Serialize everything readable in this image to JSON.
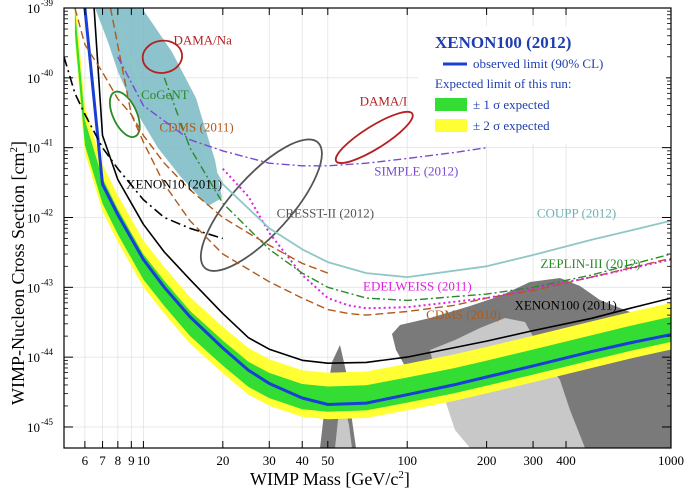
{
  "chart_data": {
    "type": "line",
    "xlabel_main": "WIMP Mass [GeV/c",
    "xlabel_sup": "2",
    "xlabel_end": "]",
    "ylabel_main": "WIMP-Nucleon Cross Section [cm",
    "ylabel_sup": "2",
    "ylabel_end": "]",
    "x_scale": "log",
    "y_scale": "log",
    "xlim": [
      5,
      1000
    ],
    "ylim": [
      5e-46,
      1e-39
    ],
    "x_ticks": [
      {
        "v": 6,
        "t": "6"
      },
      {
        "v": 7,
        "t": "7"
      },
      {
        "v": 8,
        "t": "8"
      },
      {
        "v": 9,
        "t": "9"
      },
      {
        "v": 10,
        "t": "10"
      },
      {
        "v": 20,
        "t": "20"
      },
      {
        "v": 30,
        "t": "30"
      },
      {
        "v": 40,
        "t": "40"
      },
      {
        "v": 50,
        "t": "50"
      },
      {
        "v": 100,
        "t": "100"
      },
      {
        "v": 200,
        "t": "200"
      },
      {
        "v": 300,
        "t": "300"
      },
      {
        "v": 400,
        "t": "400"
      },
      {
        "v": 1000,
        "t": "1000"
      }
    ],
    "y_ticks": [
      {
        "e": -39,
        "t": "10",
        "sup": "-39"
      },
      {
        "e": -40,
        "t": "10",
        "sup": "-40"
      },
      {
        "e": -41,
        "t": "10",
        "sup": "-41"
      },
      {
        "e": -42,
        "t": "10",
        "sup": "-42"
      },
      {
        "e": -43,
        "t": "10",
        "sup": "-43"
      },
      {
        "e": -44,
        "t": "10",
        "sup": "-44"
      },
      {
        "e": -45,
        "t": "10",
        "sup": "-45"
      }
    ],
    "legend": {
      "title": "XENON100 (2012)",
      "observed": "observed limit (90% CL)",
      "expected_title": "Expected limit of this run:",
      "band1": "± 1 σ expected",
      "band2": "± 2 σ expected",
      "observed_color": "#1a3fd6",
      "band1_color": "#33dd33",
      "band2_color": "#ffff33"
    },
    "bands": {
      "x": [
        5.5,
        6,
        7,
        8,
        10,
        12,
        15,
        20,
        25,
        30,
        40,
        50,
        70,
        100,
        150,
        200,
        300,
        500,
        700,
        1000
      ],
      "median": [
        6e-40,
        1.5e-41,
        2.2e-42,
        8e-43,
        1.8e-43,
        7.5e-44,
        2.8e-44,
        1.05e-44,
        5.2e-45,
        3.6e-45,
        2.5e-45,
        2.3e-45,
        2.4e-45,
        3.1e-45,
        4.2e-45,
        5.4e-45,
        7.8e-45,
        1.25e-44,
        1.7e-44,
        2.3e-44
      ],
      "s1_low_factor": 0.72,
      "s1_high_factor": 1.65,
      "s2_low_factor": 0.56,
      "s2_high_factor": 2.6
    },
    "series": [
      {
        "name": "",
        "color": "#1a3fd6",
        "width": 3,
        "dash": "",
        "x": [
          6,
          7,
          8,
          10,
          12,
          15,
          20,
          25,
          30,
          40,
          50,
          70,
          100,
          150,
          200,
          300,
          500,
          700,
          1000
        ],
        "y": [
          1e-39,
          3e-42,
          1.1e-42,
          2.5e-43,
          1e-43,
          3.8e-44,
          1.35e-44,
          6.5e-45,
          4.2e-45,
          2.6e-45,
          2.1e-45,
          2.2e-45,
          2.9e-45,
          4e-45,
          5.2e-45,
          7.5e-45,
          1.2e-44,
          1.6e-44,
          2.1e-44
        ]
      },
      {
        "name": "XENON100 (2011)",
        "color": "#000000",
        "width": 1.6,
        "dash": "",
        "x": [
          6.5,
          7,
          8,
          10,
          12,
          15,
          20,
          25,
          30,
          40,
          50,
          70,
          100,
          200,
          300,
          500,
          700,
          1000
        ],
        "y": [
          1e-39,
          1.5e-41,
          3.5e-42,
          8e-43,
          3.2e-43,
          1.3e-43,
          4.2e-44,
          1.9e-44,
          1.3e-44,
          9e-45,
          8.2e-45,
          8.4e-45,
          1e-44,
          1.7e-44,
          2.4e-44,
          3.6e-44,
          5e-44,
          7e-44
        ]
      },
      {
        "name": "CDMS (2010)",
        "color": "#b05a1a",
        "width": 1.4,
        "dash": "8,4",
        "x": [
          7.5,
          9,
          10,
          12,
          15,
          20,
          30,
          40,
          50,
          60,
          70,
          100,
          150,
          200,
          300,
          500,
          1000
        ],
        "y": [
          1e-39,
          3e-41,
          1.2e-41,
          3e-42,
          9e-43,
          3e-43,
          1.2e-43,
          7e-44,
          4.8e-44,
          4.2e-44,
          4e-44,
          4.5e-44,
          5.5e-44,
          7e-44,
          9e-44,
          1.4e-43,
          2.6e-43
        ]
      },
      {
        "name": "EDELWEISS (2011)",
        "color": "#dd22dd",
        "width": 2,
        "dash": "2,3",
        "x": [
          20,
          25,
          30,
          40,
          50,
          60,
          70,
          100,
          200,
          300,
          500,
          1000
        ],
        "y": [
          5e-42,
          2e-42,
          6e-43,
          1.5e-43,
          7e-44,
          5.5e-44,
          5e-44,
          5.2e-44,
          7e-44,
          9.5e-44,
          1.4e-43,
          2.5e-43
        ]
      },
      {
        "name": "ZEPLIN-III (2012)",
        "color": "#2a8a2a",
        "width": 1.4,
        "dash": "8,3,2,3",
        "x": [
          12,
          15,
          20,
          30,
          40,
          50,
          70,
          100,
          200,
          300,
          500,
          1000
        ],
        "y": [
          1e-40,
          1e-41,
          1.6e-42,
          3.5e-43,
          1.6e-43,
          1e-43,
          7e-44,
          6.5e-44,
          8e-44,
          1e-43,
          1.5e-43,
          3e-43
        ]
      },
      {
        "name": "COUPP (2012)",
        "color": "#8fc7c7",
        "width": 1.8,
        "dash": "",
        "x": [
          8,
          10,
          15,
          20,
          30,
          40,
          50,
          70,
          100,
          200,
          300,
          500,
          700,
          1000
        ],
        "y": [
          6e-40,
          6e-41,
          2e-41,
          3e-42,
          7e-43,
          3.5e-43,
          2.3e-43,
          1.6e-43,
          1.4e-43,
          2e-43,
          2.9e-43,
          4.8e-43,
          6.5e-43,
          9e-43
        ]
      },
      {
        "name": "SIMPLE (2012)",
        "color": "#7a4ad0",
        "width": 1.4,
        "dash": "8,3,2,3",
        "x": [
          8,
          10,
          15,
          20,
          30,
          40,
          50,
          70,
          100,
          150,
          200
        ],
        "y": [
          2e-40,
          4e-41,
          1.3e-41,
          9e-42,
          6e-42,
          5.5e-42,
          5.5e-42,
          6e-42,
          7e-42,
          8.5e-42,
          1e-41
        ]
      },
      {
        "name": "CDMS (2011)",
        "color": "#b05a1a",
        "width": 1.4,
        "dash": "8,4",
        "x": [
          5.5,
          6,
          7,
          8,
          9,
          10,
          12,
          15,
          20,
          25,
          30,
          40,
          50
        ],
        "y": [
          1e-39,
          3e-40,
          1.2e-40,
          5e-41,
          3e-41,
          1.5e-41,
          6e-42,
          2.5e-42,
          1e-42,
          6e-43,
          4e-43,
          2.2e-43,
          1.6e-43
        ]
      },
      {
        "name": "XENON10 (2011)",
        "color": "#000000",
        "width": 1.6,
        "dash": "10,4,2,4",
        "x": [
          5,
          5.5,
          6,
          7,
          8,
          10,
          12,
          15,
          20
        ],
        "y": [
          2e-40,
          6e-41,
          3e-41,
          1e-41,
          5e-42,
          1.8e-42,
          1e-42,
          7e-43,
          5e-43
        ]
      }
    ],
    "regions": [
      {
        "name": "DAMA/Na",
        "color": "#b52020",
        "cx": 11.8,
        "cy": 2e-40,
        "rx": 0.075,
        "ry": 0.23,
        "rot": -8
      },
      {
        "name": "DAMA/I",
        "color": "#b52020",
        "cx": 75,
        "cy": 1.4e-41,
        "rx": 0.17,
        "ry": 0.16,
        "rot": -32
      },
      {
        "name": "CoGeNT",
        "color": "#2a8a2a",
        "cx": 8.5,
        "cy": 3e-41,
        "rx": 0.045,
        "ry": 0.35,
        "rot": -25
      },
      {
        "name": "CRESST-II (2012)",
        "color": "#555555",
        "cx": 28,
        "cy": 1.5e-42,
        "rx": 0.32,
        "ry": 0.42,
        "rot": -48
      }
    ],
    "annotations": [
      {
        "text": "DAMA/Na",
        "x": 13,
        "y": 3e-40,
        "color": "#b52020"
      },
      {
        "text": "CoGeNT",
        "x": 9.8,
        "y": 5e-41,
        "color": "#2a8a2a"
      },
      {
        "text": "CDMS (2011)",
        "x": 11.5,
        "y": 1.7e-41,
        "color": "#b05a1a"
      },
      {
        "text": "DAMA/I",
        "x": 66,
        "y": 4e-41,
        "color": "#b52020"
      },
      {
        "text": "SIMPLE (2012)",
        "x": 75,
        "y": 4e-42,
        "color": "#7a4ad0"
      },
      {
        "text": "XENON10 (2011)",
        "x": 8.6,
        "y": 2.6e-42,
        "color": "#000000"
      },
      {
        "text": "CRESST-II (2012)",
        "x": 32,
        "y": 1e-42,
        "color": "#555555"
      },
      {
        "text": "COUPP (2012)",
        "x": 310,
        "y": 1e-42,
        "color": "#6fb0b0"
      },
      {
        "text": "ZEPLIN-III (2012)",
        "x": 320,
        "y": 1.9e-43,
        "color": "#2a8a2a"
      },
      {
        "text": "EDELWEISS (2011)",
        "x": 68,
        "y": 9e-44,
        "color": "#dd22dd"
      },
      {
        "text": "CDMS (2010)",
        "x": 118,
        "y": 3.5e-44,
        "color": "#b05a1a"
      },
      {
        "text": "XENON100 (2011)",
        "x": 255,
        "y": 4.8e-44,
        "color": "#000000"
      }
    ]
  }
}
